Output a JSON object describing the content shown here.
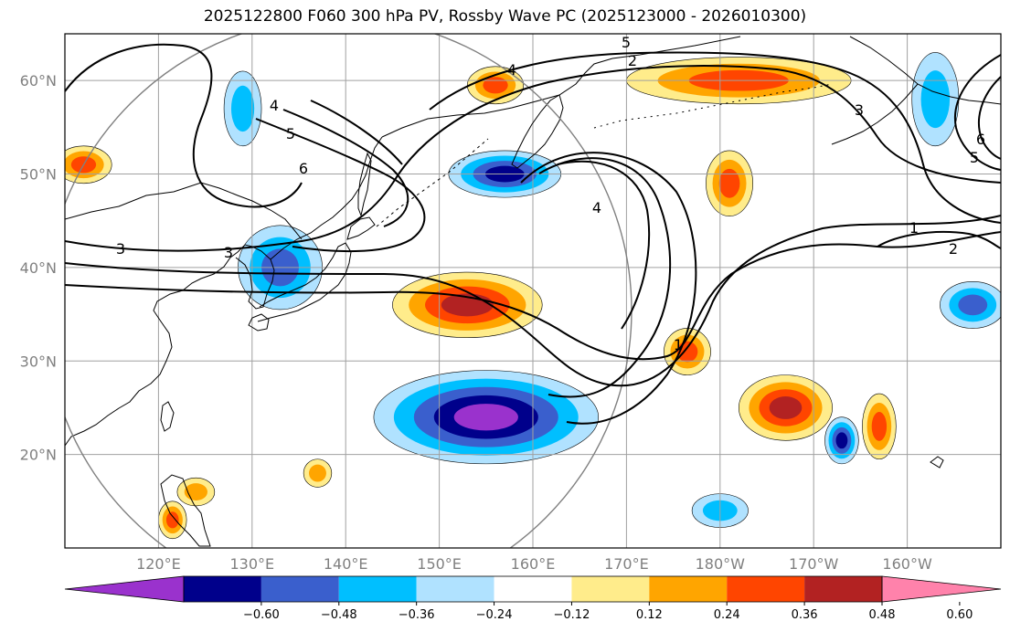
{
  "title": "2025122800 F060 300 hPa PV, Rossby Wave PC (2025123000 - 2026010300)",
  "colors": {
    "grid": "#a0a0a0",
    "coast": "#000000",
    "contour": "#000000",
    "ring": "#808080"
  },
  "chart_data": {
    "type": "map",
    "projection": "equirectangular",
    "lon_range": [
      110,
      210
    ],
    "lat_range": [
      10,
      65
    ],
    "lat_ticks": [
      {
        "lat": 60,
        "label": "60°N"
      },
      {
        "lat": 50,
        "label": "50°N"
      },
      {
        "lat": 40,
        "label": "40°N"
      },
      {
        "lat": 30,
        "label": "30°N"
      },
      {
        "lat": 20,
        "label": "20°N"
      }
    ],
    "lon_ticks": [
      {
        "lon": 120,
        "label": "120°E"
      },
      {
        "lon": 130,
        "label": "130°E"
      },
      {
        "lon": 140,
        "label": "140°E"
      },
      {
        "lon": 150,
        "label": "150°E"
      },
      {
        "lon": 160,
        "label": "160°E"
      },
      {
        "lon": 170,
        "label": "170°E"
      },
      {
        "lon": 180,
        "label": "180°W"
      },
      {
        "lon": 190,
        "label": "170°W"
      },
      {
        "lon": 200,
        "label": "160°W"
      }
    ],
    "colorbar": {
      "levels": [
        -0.72,
        -0.6,
        -0.48,
        -0.36,
        -0.24,
        -0.12,
        0.12,
        0.24,
        0.36,
        0.48,
        0.6,
        0.72
      ],
      "colors": [
        "#9a32cd",
        "#00008b",
        "#3a5fcd",
        "#00bfff",
        "#b0e2ff",
        "#ffffff",
        "#ffec8b",
        "#ffa500",
        "#ff4500",
        "#b22222",
        "#ff82ab"
      ],
      "tick_labels": [
        "−0.60",
        "−0.48",
        "−0.36",
        "−0.24",
        "−0.12",
        "0.12",
        "0.24",
        "0.36",
        "0.48",
        "0.60"
      ],
      "extend": "both"
    },
    "pv_contour_labels": [
      "4",
      "5",
      "6",
      "3",
      "2",
      "1",
      "4",
      "3",
      "1",
      "2",
      "5",
      "6",
      "5",
      "4",
      "3"
    ],
    "anomalies": [
      {
        "name": "anom-japan-sea-neg",
        "lon": 133,
        "lat": 40,
        "rx": 4.5,
        "ry": 4.5,
        "values": [
          -0.12,
          -0.24,
          -0.36
        ]
      },
      {
        "name": "anom-sakhalin-neg",
        "lon": 129,
        "lat": 57,
        "rx": 2,
        "ry": 4,
        "values": [
          -0.12,
          -0.24
        ]
      },
      {
        "name": "anom-okhotsk-neg",
        "lon": 157,
        "lat": 50,
        "rx": 6,
        "ry": 2.5,
        "values": [
          -0.12,
          -0.24,
          -0.36,
          -0.48
        ]
      },
      {
        "name": "anom-subtropic-neg",
        "lon": 155,
        "lat": 24,
        "rx": 12,
        "ry": 5,
        "values": [
          -0.12,
          -0.24,
          -0.36,
          -0.48,
          -0.6
        ]
      },
      {
        "name": "anom-kuroshio-pos",
        "lon": 153,
        "lat": 36,
        "rx": 8,
        "ry": 3.5,
        "values": [
          0.12,
          0.24,
          0.36,
          0.48
        ]
      },
      {
        "name": "anom-bering-pos",
        "lon": 182,
        "lat": 60,
        "rx": 12,
        "ry": 2.5,
        "values": [
          0.12,
          0.24,
          0.36
        ]
      },
      {
        "name": "anom-kamchatka-pos",
        "lon": 156,
        "lat": 59.5,
        "rx": 3,
        "ry": 2,
        "values": [
          0.12,
          0.24,
          0.36
        ]
      },
      {
        "name": "anom-npac-pos",
        "lon": 187,
        "lat": 25,
        "rx": 5,
        "ry": 3.5,
        "values": [
          0.12,
          0.24,
          0.36,
          0.48
        ]
      },
      {
        "name": "anom-dateline-pos",
        "lon": 176.5,
        "lat": 31,
        "rx": 2.5,
        "ry": 2.5,
        "values": [
          0.12,
          0.24,
          0.36
        ]
      },
      {
        "name": "anom-aleutian-pos",
        "lon": 181,
        "lat": 49,
        "rx": 2.5,
        "ry": 3.5,
        "values": [
          0.12,
          0.24,
          0.36
        ]
      },
      {
        "name": "anom-hawaii-pos",
        "lon": 197,
        "lat": 23,
        "rx": 1.8,
        "ry": 3.5,
        "values": [
          0.12,
          0.24,
          0.36
        ]
      },
      {
        "name": "anom-goa-neg",
        "lon": 207,
        "lat": 36,
        "rx": 3.5,
        "ry": 2.5,
        "values": [
          -0.12,
          -0.24,
          -0.36
        ]
      },
      {
        "name": "anom-goa-north-neg",
        "lon": 203,
        "lat": 58,
        "rx": 2.5,
        "ry": 5,
        "values": [
          -0.12,
          -0.24
        ]
      },
      {
        "name": "anom-mariana-pos",
        "lon": 137,
        "lat": 18,
        "rx": 1.5,
        "ry": 1.5,
        "values": [
          0.12,
          0.24
        ]
      },
      {
        "name": "anom-luzon-pos",
        "lon": 121.5,
        "lat": 13,
        "rx": 1.5,
        "ry": 2,
        "values": [
          0.12,
          0.24,
          0.36
        ]
      },
      {
        "name": "anom-westpac-pos",
        "lon": 124,
        "lat": 16,
        "rx": 2,
        "ry": 1.5,
        "values": [
          0.12,
          0.24
        ]
      },
      {
        "name": "anom-npac-south-neg",
        "lon": 180,
        "lat": 14,
        "rx": 3,
        "ry": 1.8,
        "values": [
          -0.12,
          -0.24
        ]
      },
      {
        "name": "anom-mongolia-pos",
        "lon": 112,
        "lat": 51,
        "rx": 3,
        "ry": 2,
        "values": [
          0.12,
          0.24,
          0.36
        ]
      },
      {
        "name": "anom-central-neg",
        "lon": 193,
        "lat": 21.5,
        "rx": 1.8,
        "ry": 2.5,
        "values": [
          -0.12,
          -0.24,
          -0.36,
          -0.48
        ]
      }
    ]
  }
}
